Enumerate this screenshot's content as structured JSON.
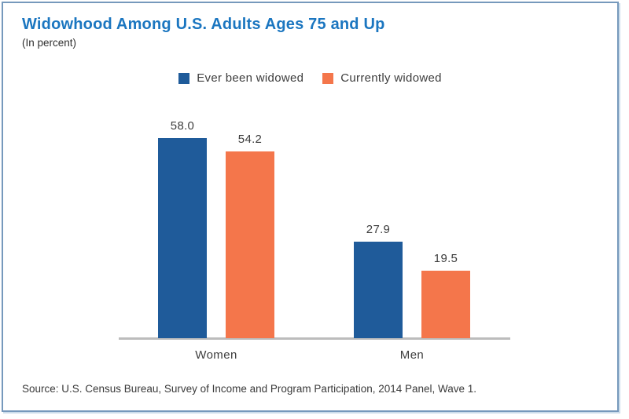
{
  "header": {
    "title": "Widowhood Among U.S. Adults Ages 75 and Up",
    "subtitle": "(In percent)"
  },
  "footer": {
    "source": "Source: U.S. Census Bureau, Survey of Income and Program Participation, 2014 Panel, Wave 1."
  },
  "colors": {
    "title_blue": "#1b76c0",
    "frame_border": "#7699bc",
    "axis_gray": "#bcbcbc",
    "label_text": "#3d3d3d",
    "series1_blue": "#1f5b9a",
    "series2_orange": "#f4764b"
  },
  "chart_data": {
    "type": "bar",
    "title": "Widowhood Among U.S. Adults Ages 75 and Up",
    "subtitle": "(In percent)",
    "categories": [
      "Women",
      "Men"
    ],
    "series": [
      {
        "name": "Ever been widowed",
        "color": "#1f5b9a",
        "values": [
          58.0,
          27.9
        ],
        "labels": [
          "58.0",
          "27.9"
        ]
      },
      {
        "name": "Currently widowed",
        "color": "#f4764b",
        "values": [
          54.2,
          19.5
        ],
        "labels": [
          "54.2",
          "19.5"
        ]
      }
    ],
    "ylim": [
      0,
      65
    ],
    "grid": false,
    "y_axis_hidden": true,
    "legend_position": "top-center",
    "value_labels": "above-bars"
  }
}
